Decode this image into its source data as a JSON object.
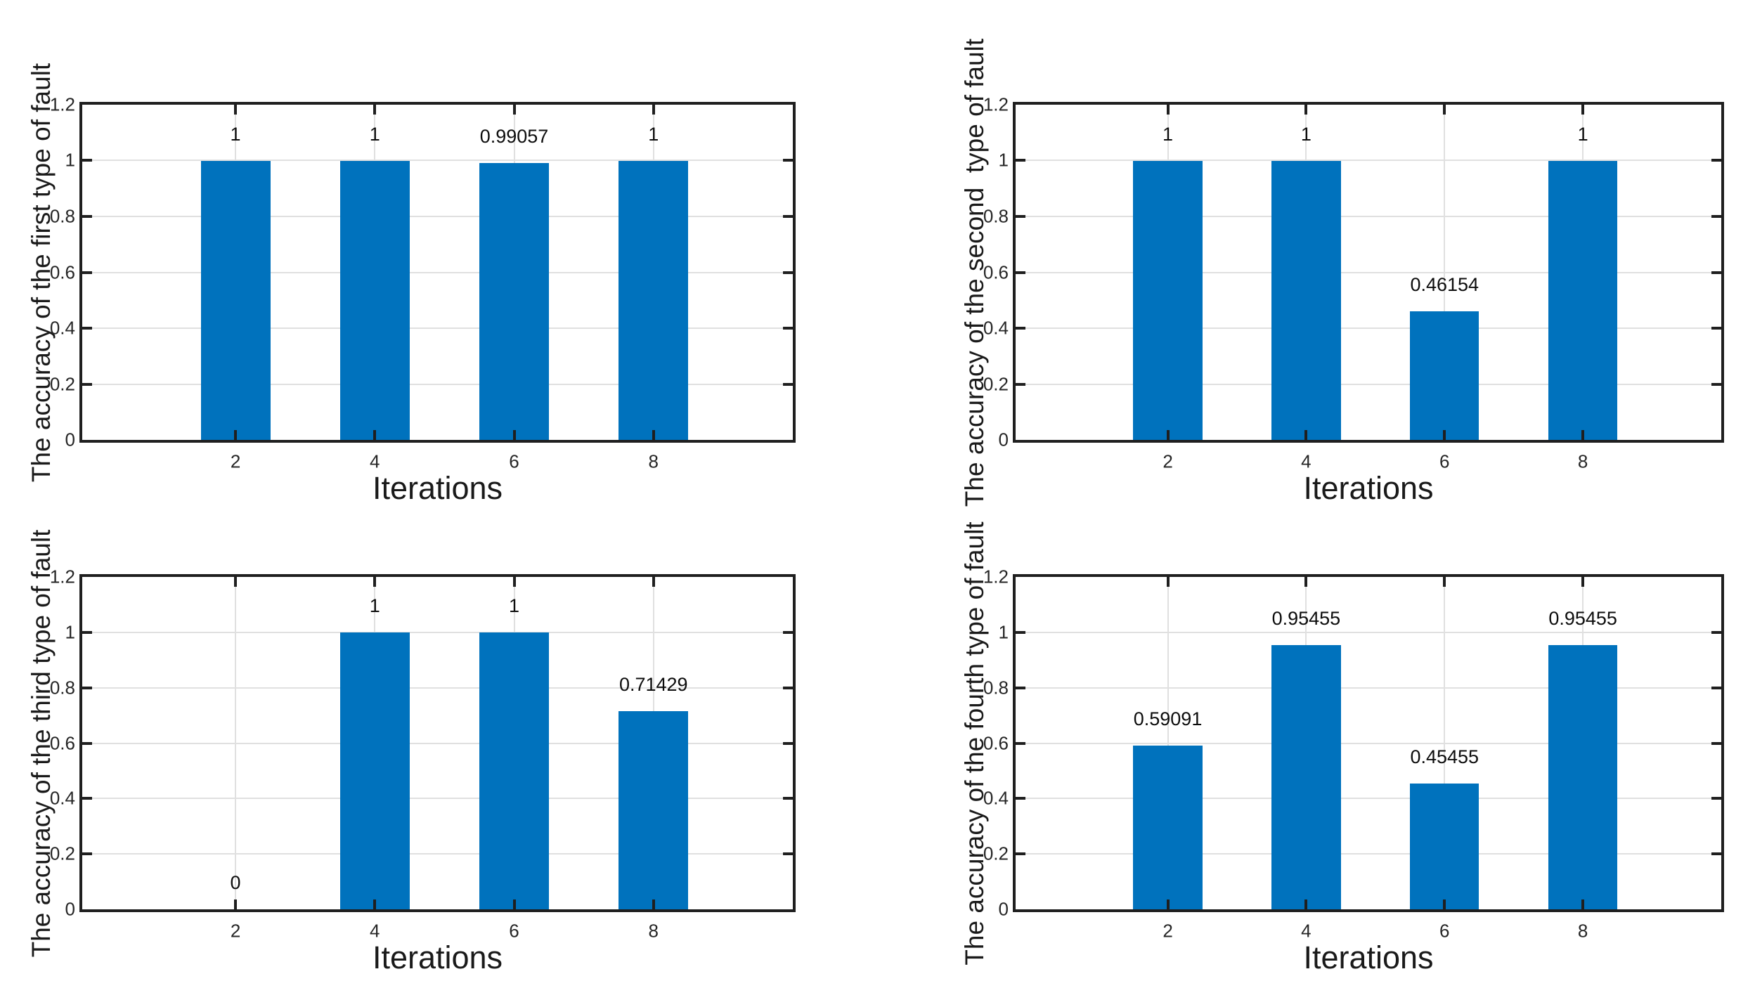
{
  "figure": {
    "background": "#ffffff",
    "bar_color": "#0072BD",
    "axis_color": "#1f1f1f",
    "grid_color": "#e0e0e0",
    "tick_text_color": "#262626",
    "label_text_color": "#1a1a1a",
    "y_tick_labels": [
      "0",
      "0.2",
      "0.4",
      "0.6",
      "0.8",
      "1",
      "1.2"
    ],
    "y_tick_values": [
      0,
      0.2,
      0.4,
      0.6,
      0.8,
      1,
      1.2
    ],
    "x_tick_labels": [
      "2",
      "4",
      "6",
      "8"
    ]
  },
  "chart_data": [
    {
      "id": "fault1",
      "type": "bar",
      "position": "top-left",
      "title": "",
      "xlabel": "Iterations",
      "ylabel": "The accuracy of the first type of fault",
      "categories": [
        2,
        4,
        6,
        8
      ],
      "values": [
        1,
        1,
        0.99057,
        1
      ],
      "value_labels": [
        "1",
        "1",
        "0.99057",
        "1"
      ],
      "xlim": [
        -0.2,
        10
      ],
      "ylim": [
        0,
        1.2
      ],
      "bar_width": 1,
      "grid": true,
      "legend": "none"
    },
    {
      "id": "fault2",
      "type": "bar",
      "position": "top-right",
      "title": "",
      "xlabel": "Iterations",
      "ylabel": "The accuracy of the second  type of fault",
      "categories": [
        2,
        4,
        6,
        8
      ],
      "values": [
        1,
        1,
        0.46154,
        1
      ],
      "value_labels": [
        "1",
        "1",
        "0.46154",
        "1"
      ],
      "xlim": [
        -0.2,
        10
      ],
      "ylim": [
        0,
        1.2
      ],
      "bar_width": 1,
      "grid": true,
      "legend": "none"
    },
    {
      "id": "fault3",
      "type": "bar",
      "position": "bottom-left",
      "title": "",
      "xlabel": "Iterations",
      "ylabel": "The accuracy of the third type of fault",
      "categories": [
        2,
        4,
        6,
        8
      ],
      "values": [
        0,
        1,
        1,
        0.71429
      ],
      "value_labels": [
        "0",
        "1",
        "1",
        "0.71429"
      ],
      "xlim": [
        -0.2,
        10
      ],
      "ylim": [
        0,
        1.2
      ],
      "bar_width": 1,
      "grid": true,
      "legend": "none"
    },
    {
      "id": "fault4",
      "type": "bar",
      "position": "bottom-right",
      "title": "",
      "xlabel": "Iterations",
      "ylabel": "The accuracy of the fourth type of fault",
      "categories": [
        2,
        4,
        6,
        8
      ],
      "values": [
        0.59091,
        0.95455,
        0.45455,
        0.95455
      ],
      "value_labels": [
        "0.59091",
        "0.95455",
        "0.45455",
        "0.95455"
      ],
      "xlim": [
        -0.2,
        10
      ],
      "ylim": [
        0,
        1.2
      ],
      "bar_width": 1,
      "grid": true,
      "legend": "none"
    }
  ]
}
